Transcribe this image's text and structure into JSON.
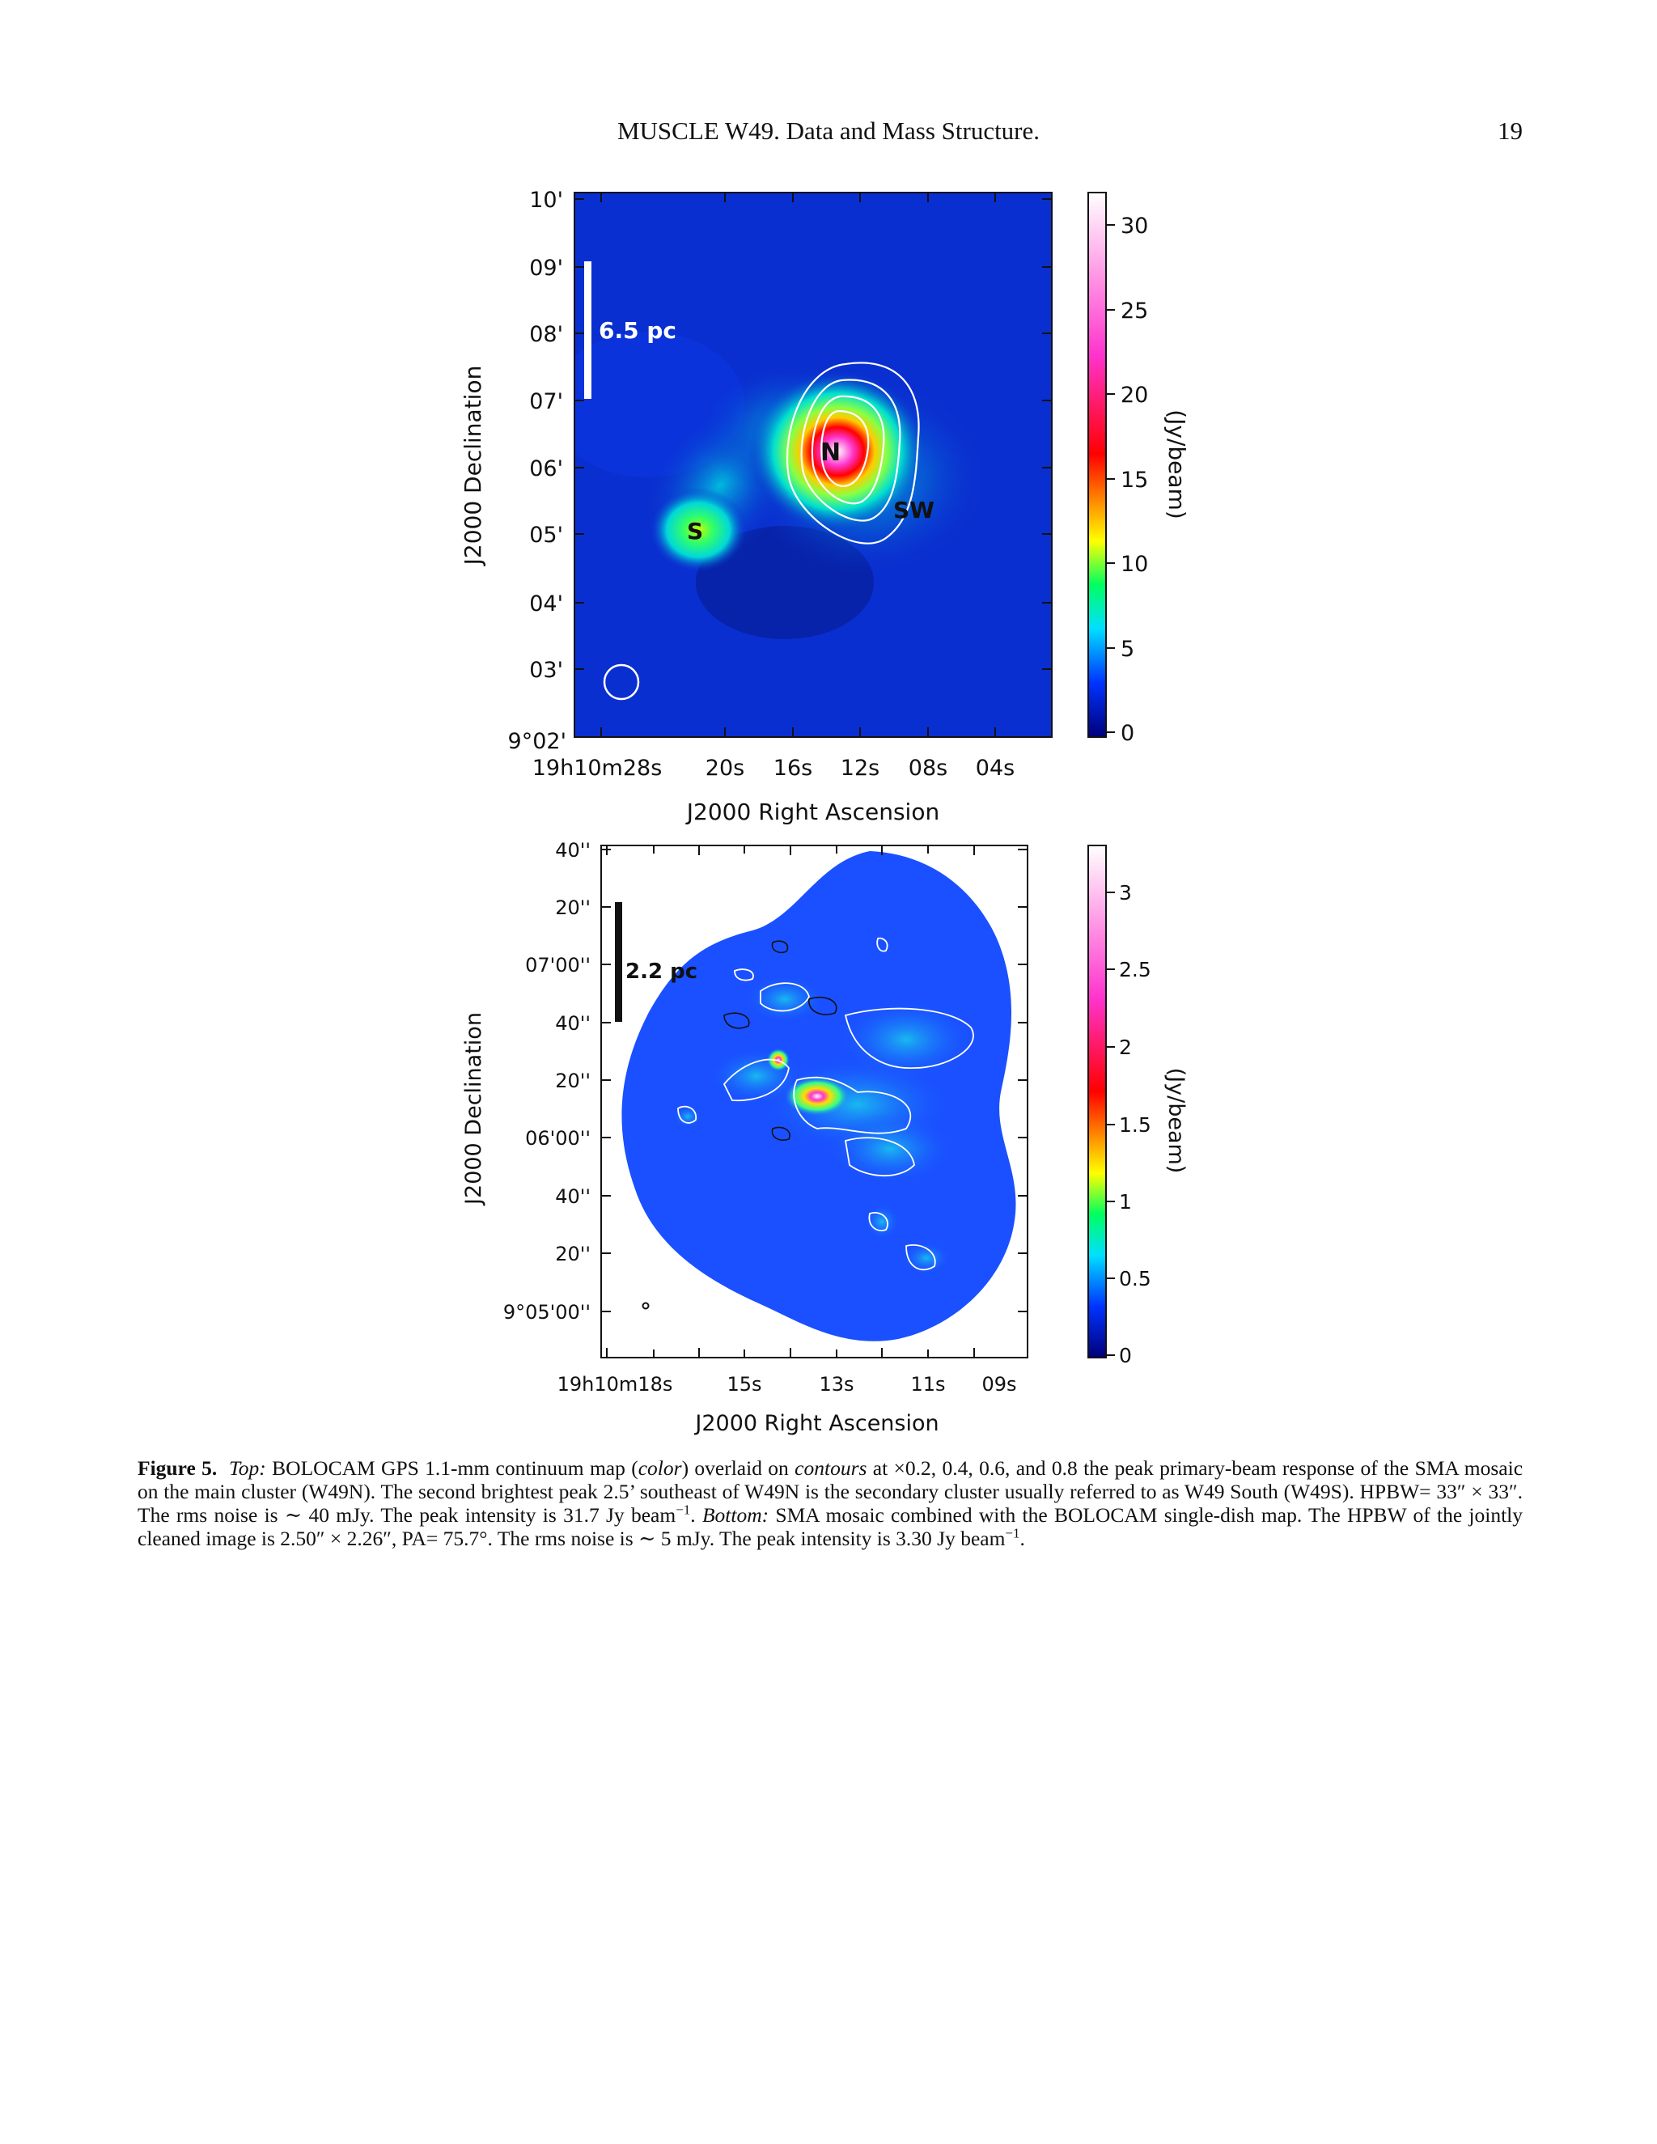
{
  "header": {
    "title": "MUSCLE W49. Data and Mass Structure.",
    "page_number": "19"
  },
  "top_panel": {
    "dec_ticks": [
      "10'",
      "09'",
      "08'",
      "07'",
      "06'",
      "05'",
      "04'",
      "03'",
      "9°02'"
    ],
    "ra_ticks": [
      "19h10m28s",
      "20s",
      "16s",
      "12s",
      "08s",
      "04s"
    ],
    "xlabel": "J2000 Right Ascension",
    "ylabel": "J2000 Declination",
    "scale_bar": "6.5 pc",
    "source_labels": [
      "N",
      "S",
      "SW"
    ],
    "colorbar_ticks": [
      "30",
      "25",
      "20",
      "15",
      "10",
      "5",
      "0"
    ],
    "colorbar_label": "(Jy/beam)",
    "colorbar_range": [
      0,
      31.7
    ]
  },
  "bottom_panel": {
    "dec_ticks": [
      "40''",
      "20''",
      "07'00''",
      "40''",
      "20''",
      "06'00''",
      "40''",
      "20''",
      "9°05'00''"
    ],
    "ra_ticks": [
      "19h10m18s",
      "15s",
      "13s",
      "11s",
      "09s"
    ],
    "xlabel": "J2000 Right Ascension",
    "ylabel": "J2000 Declination",
    "scale_bar": "2.2 pc",
    "colorbar_ticks": [
      "3",
      "2.5",
      "2",
      "1.5",
      "1",
      "0.5",
      "0"
    ],
    "colorbar_label": "(Jy/beam)",
    "colorbar_range": [
      0,
      3.3
    ]
  },
  "caption": {
    "label": "Figure 5.",
    "top_word": "Top:",
    "part1": " BOLOCAM GPS 1.1-mm continuum map (",
    "color_word": "color",
    "part2": ") overlaid on ",
    "contours_word": "contours",
    "part3": " at ×0.2, 0.4, 0.6, and 0.8 the peak primary-beam response of the SMA mosaic on the main cluster (W49N). The second brightest peak 2.5’ southeast of W49N is the secondary cluster usually referred to as W49 South (W49S). HPBW= 33″ × 33″. The rms noise is ∼ 40 mJy. The peak intensity is 31.7 Jy beam",
    "sup1": "−1",
    "part4": ". ",
    "bottom_word": "Bottom:",
    "part5": " SMA mosaic combined with the BOLOCAM single-dish map. The HPBW of the jointly cleaned image is 2.50″ × 2.26″, PA= 75.7°. The rms noise is ∼ 5 mJy. The peak intensity is 3.30 Jy beam",
    "sup2": "−1",
    "part6": "."
  },
  "colors": {
    "map_background": "#0a2fd0",
    "colormap": [
      "#00007a",
      "#0033ff",
      "#00e0ff",
      "#00ff60",
      "#ffff00",
      "#ff8000",
      "#ff0000",
      "#ff33cc",
      "#ffffff"
    ]
  }
}
